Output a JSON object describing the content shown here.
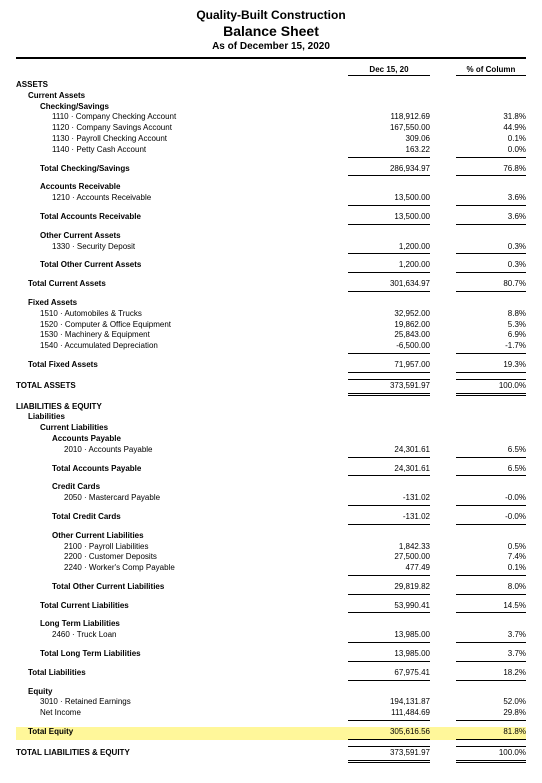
{
  "header": {
    "company": "Quality-Built Construction",
    "title": "Balance Sheet",
    "as_of": "As of December 15, 2020"
  },
  "column_headers": {
    "col1": "Dec 15, 20",
    "col2": "% of Column"
  },
  "colors": {
    "highlight": "#fff79a",
    "rule": "#000000"
  },
  "rows": [
    {
      "label": "ASSETS",
      "indent": 0,
      "bold": true
    },
    {
      "label": "Current Assets",
      "indent": 1,
      "bold": true
    },
    {
      "label": "Checking/Savings",
      "indent": 2,
      "bold": true
    },
    {
      "label": "1110 · Company Checking Account",
      "indent": 3,
      "amt": "118,912.69",
      "pct": "31.8%"
    },
    {
      "label": "1120 · Company Savings Account",
      "indent": 3,
      "amt": "167,550.00",
      "pct": "44.9%"
    },
    {
      "label": "1130 · Payroll Checking Account",
      "indent": 3,
      "amt": "309.06",
      "pct": "0.1%"
    },
    {
      "label": "1140 · Petty Cash Account",
      "indent": 3,
      "amt": "163.22",
      "pct": "0.0%",
      "rule": "u1"
    },
    {
      "spacer": true
    },
    {
      "label": "Total Checking/Savings",
      "indent": 2,
      "bold": true,
      "amt": "286,934.97",
      "pct": "76.8%",
      "rule": "u1"
    },
    {
      "spacer": true
    },
    {
      "label": "Accounts Receivable",
      "indent": 2,
      "bold": true
    },
    {
      "label": "1210 · Accounts Receivable",
      "indent": 3,
      "amt": "13,500.00",
      "pct": "3.6%",
      "rule": "u1"
    },
    {
      "spacer": true
    },
    {
      "label": "Total Accounts Receivable",
      "indent": 2,
      "bold": true,
      "amt": "13,500.00",
      "pct": "3.6%",
      "rule": "u1"
    },
    {
      "spacer": true
    },
    {
      "label": "Other Current Assets",
      "indent": 2,
      "bold": true
    },
    {
      "label": "1330 · Security Deposit",
      "indent": 3,
      "amt": "1,200.00",
      "pct": "0.3%",
      "rule": "u1"
    },
    {
      "spacer": true
    },
    {
      "label": "Total Other Current Assets",
      "indent": 2,
      "bold": true,
      "amt": "1,200.00",
      "pct": "0.3%",
      "rule": "u1"
    },
    {
      "spacer": true
    },
    {
      "label": "Total Current Assets",
      "indent": 1,
      "bold": true,
      "amt": "301,634.97",
      "pct": "80.7%",
      "rule": "u1"
    },
    {
      "spacer": true
    },
    {
      "label": "Fixed Assets",
      "indent": 1,
      "bold": true
    },
    {
      "label": "1510 · Automobiles & Trucks",
      "indent": 2,
      "amt": "32,952.00",
      "pct": "8.8%"
    },
    {
      "label": "1520 · Computer & Office Equipment",
      "indent": 2,
      "amt": "19,862.00",
      "pct": "5.3%"
    },
    {
      "label": "1530 · Machinery & Equipment",
      "indent": 2,
      "amt": "25,843.00",
      "pct": "6.9%"
    },
    {
      "label": "1540 · Accumulated Depreciation",
      "indent": 2,
      "amt": "-6,500.00",
      "pct": "-1.7%",
      "rule": "u1"
    },
    {
      "spacer": true
    },
    {
      "label": "Total Fixed Assets",
      "indent": 1,
      "bold": true,
      "amt": "71,957.00",
      "pct": "19.3%",
      "rule": "u1"
    },
    {
      "spacer": true
    },
    {
      "label": "TOTAL ASSETS",
      "indent": 0,
      "bold": true,
      "amt": "373,591.97",
      "pct": "100.0%",
      "rule": "udT"
    },
    {
      "spacer": true
    },
    {
      "label": "LIABILITIES & EQUITY",
      "indent": 0,
      "bold": true
    },
    {
      "label": "Liabilities",
      "indent": 1,
      "bold": true
    },
    {
      "label": "Current Liabilities",
      "indent": 2,
      "bold": true
    },
    {
      "label": "Accounts Payable",
      "indent": 3,
      "bold": true
    },
    {
      "label": "2010 · Accounts Payable",
      "indent": 4,
      "amt": "24,301.61",
      "pct": "6.5%",
      "rule": "u1"
    },
    {
      "spacer": true
    },
    {
      "label": "Total Accounts Payable",
      "indent": 3,
      "bold": true,
      "amt": "24,301.61",
      "pct": "6.5%",
      "rule": "u1"
    },
    {
      "spacer": true
    },
    {
      "label": "Credit Cards",
      "indent": 3,
      "bold": true
    },
    {
      "label": "2050 · Mastercard Payable",
      "indent": 4,
      "amt": "-131.02",
      "pct": "-0.0%",
      "rule": "u1"
    },
    {
      "spacer": true
    },
    {
      "label": "Total Credit Cards",
      "indent": 3,
      "bold": true,
      "amt": "-131.02",
      "pct": "-0.0%",
      "rule": "u1"
    },
    {
      "spacer": true
    },
    {
      "label": "Other Current Liabilities",
      "indent": 3,
      "bold": true
    },
    {
      "label": "2100 · Payroll Liabilities",
      "indent": 4,
      "amt": "1,842.33",
      "pct": "0.5%"
    },
    {
      "label": "2200 · Customer Deposits",
      "indent": 4,
      "amt": "27,500.00",
      "pct": "7.4%"
    },
    {
      "label": "2240 · Worker's Comp Payable",
      "indent": 4,
      "amt": "477.49",
      "pct": "0.1%",
      "rule": "u1"
    },
    {
      "spacer": true
    },
    {
      "label": "Total Other Current Liabilities",
      "indent": 3,
      "bold": true,
      "amt": "29,819.82",
      "pct": "8.0%",
      "rule": "u1"
    },
    {
      "spacer": true
    },
    {
      "label": "Total Current Liabilities",
      "indent": 2,
      "bold": true,
      "amt": "53,990.41",
      "pct": "14.5%",
      "rule": "u1"
    },
    {
      "spacer": true
    },
    {
      "label": "Long Term Liabilities",
      "indent": 2,
      "bold": true
    },
    {
      "label": "2460 · Truck Loan",
      "indent": 3,
      "amt": "13,985.00",
      "pct": "3.7%",
      "rule": "u1"
    },
    {
      "spacer": true
    },
    {
      "label": "Total Long Term Liabilities",
      "indent": 2,
      "bold": true,
      "amt": "13,985.00",
      "pct": "3.7%",
      "rule": "u1"
    },
    {
      "spacer": true
    },
    {
      "label": "Total Liabilities",
      "indent": 1,
      "bold": true,
      "amt": "67,975.41",
      "pct": "18.2%",
      "rule": "u1"
    },
    {
      "spacer": true
    },
    {
      "label": "Equity",
      "indent": 1,
      "bold": true
    },
    {
      "label": "3010 · Retained Earnings",
      "indent": 2,
      "amt": "194,131.87",
      "pct": "52.0%"
    },
    {
      "label": "Net Income",
      "indent": 2,
      "amt": "111,484.69",
      "pct": "29.8%",
      "rule": "u1"
    },
    {
      "spacer": true
    },
    {
      "label": "Total Equity",
      "indent": 1,
      "bold": true,
      "amt": "305,616.56",
      "pct": "81.8%",
      "rule": "u1",
      "highlight": true
    },
    {
      "spacer": true
    },
    {
      "label": "TOTAL LIABILITIES & EQUITY",
      "indent": 0,
      "bold": true,
      "amt": "373,591.97",
      "pct": "100.0%",
      "rule": "udT"
    }
  ]
}
